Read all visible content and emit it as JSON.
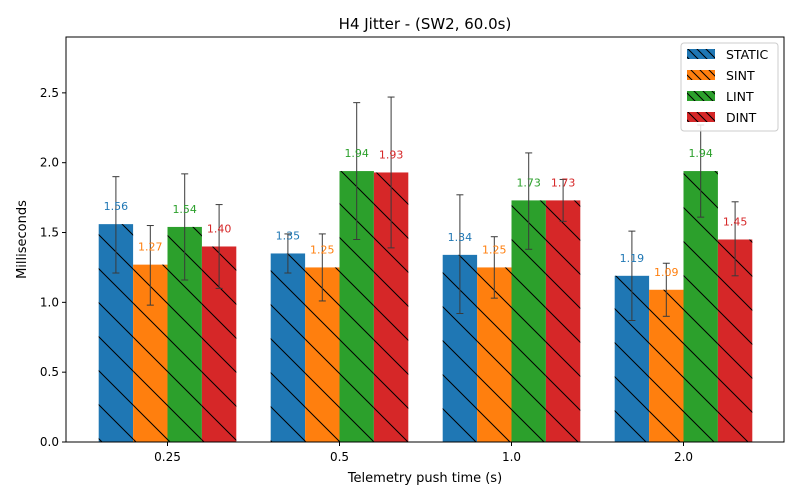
{
  "chart_data": {
    "type": "bar",
    "title": "H4 Jitter - (SW2, 60.0s)",
    "xlabel": "Telemetry push time (s)",
    "ylabel": "Milliseconds",
    "categories": [
      "0.25",
      "0.5",
      "1.0",
      "2.0"
    ],
    "ylim": [
      0,
      2.9
    ],
    "yticks": [
      "0.0",
      "0.5",
      "1.0",
      "1.5",
      "2.0",
      "2.5"
    ],
    "grid": false,
    "legend_position": "top-right",
    "hatch": "diagonal-backslash",
    "series": [
      {
        "name": "STATIC",
        "color": "#1f77b4",
        "values": [
          1.56,
          1.35,
          1.34,
          1.19
        ],
        "labels": [
          "1.56",
          "1.35",
          "1.34",
          "1.19"
        ],
        "err_low": [
          1.21,
          1.21,
          0.92,
          0.87
        ],
        "err_high": [
          1.9,
          1.49,
          1.77,
          1.51
        ]
      },
      {
        "name": "SINT",
        "color": "#ff7f0e",
        "values": [
          1.27,
          1.25,
          1.25,
          1.09
        ],
        "labels": [
          "1.27",
          "1.25",
          "1.25",
          "1.09"
        ],
        "err_low": [
          0.98,
          1.01,
          1.03,
          0.9
        ],
        "err_high": [
          1.55,
          1.49,
          1.47,
          1.28
        ]
      },
      {
        "name": "LINT",
        "color": "#2ca02c",
        "values": [
          1.54,
          1.94,
          1.73,
          1.94
        ],
        "labels": [
          "1.54",
          "1.94",
          "1.73",
          "1.94"
        ],
        "err_low": [
          1.16,
          1.45,
          1.38,
          1.61
        ],
        "err_high": [
          1.92,
          2.43,
          2.07,
          2.27
        ]
      },
      {
        "name": "DINT",
        "color": "#d62728",
        "values": [
          1.4,
          1.93,
          1.73,
          1.45
        ],
        "labels": [
          "1.40",
          "1.93",
          "1.73",
          "1.45"
        ],
        "err_low": [
          1.1,
          1.39,
          1.58,
          1.19
        ],
        "err_high": [
          1.7,
          2.47,
          1.88,
          1.72
        ]
      }
    ]
  }
}
